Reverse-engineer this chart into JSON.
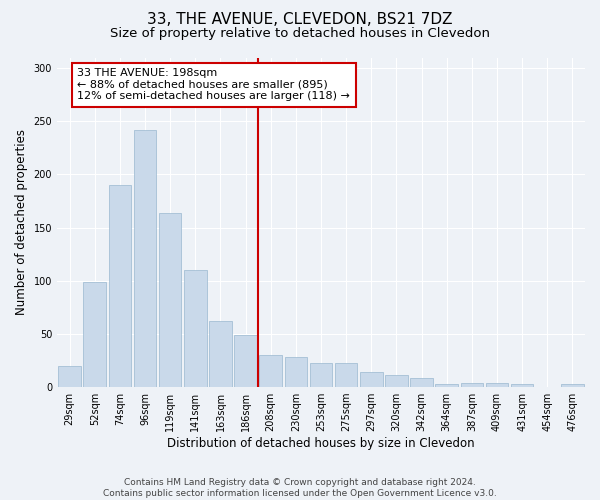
{
  "title": "33, THE AVENUE, CLEVEDON, BS21 7DZ",
  "subtitle": "Size of property relative to detached houses in Clevedon",
  "xlabel": "Distribution of detached houses by size in Clevedon",
  "ylabel": "Number of detached properties",
  "bar_color": "#c9d9ea",
  "bar_edge_color": "#9ab8d0",
  "categories": [
    "29sqm",
    "52sqm",
    "74sqm",
    "96sqm",
    "119sqm",
    "141sqm",
    "163sqm",
    "186sqm",
    "208sqm",
    "230sqm",
    "253sqm",
    "275sqm",
    "297sqm",
    "320sqm",
    "342sqm",
    "364sqm",
    "387sqm",
    "409sqm",
    "431sqm",
    "454sqm",
    "476sqm"
  ],
  "values": [
    20,
    99,
    190,
    242,
    164,
    110,
    62,
    49,
    30,
    28,
    23,
    23,
    14,
    11,
    9,
    3,
    4,
    4,
    3,
    0,
    3
  ],
  "vline_x_idx": 7,
  "vline_color": "#cc0000",
  "annot_line1": "33 THE AVENUE: 198sqm",
  "annot_line2": "← 88% of detached houses are smaller (895)",
  "annot_line3": "12% of semi-detached houses are larger (118) →",
  "annotation_box_color": "#ffffff",
  "annotation_box_edge_color": "#cc0000",
  "ylim": [
    0,
    310
  ],
  "yticks": [
    0,
    50,
    100,
    150,
    200,
    250,
    300
  ],
  "footer": "Contains HM Land Registry data © Crown copyright and database right 2024.\nContains public sector information licensed under the Open Government Licence v3.0.",
  "bg_color": "#eef2f7",
  "grid_color": "#ffffff",
  "title_fontsize": 11,
  "subtitle_fontsize": 9.5,
  "annot_fontsize": 8,
  "tick_fontsize": 7,
  "ylabel_fontsize": 8.5,
  "xlabel_fontsize": 8.5,
  "footer_fontsize": 6.5
}
